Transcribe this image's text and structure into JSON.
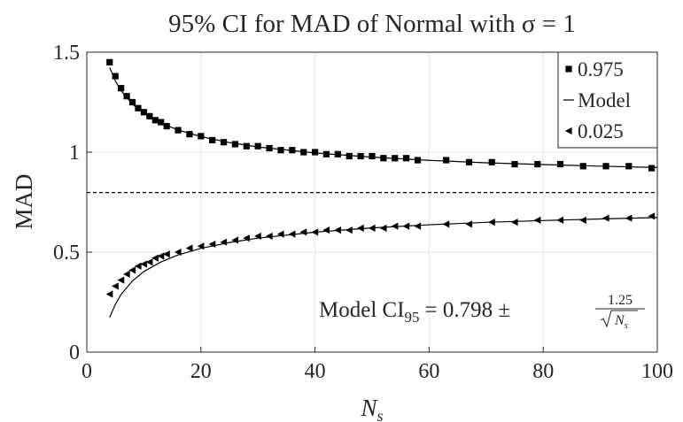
{
  "chart_data": {
    "type": "scatter",
    "title": "95% CI for MAD of Normal with σ = 1",
    "xlabel": {
      "base": "N",
      "sub": "s"
    },
    "ylabel": "MAD",
    "xlim": [
      0,
      100
    ],
    "xticks": [
      0,
      20,
      40,
      60,
      80,
      100
    ],
    "ylim": [
      0,
      1.5
    ],
    "yticks": [
      0,
      0.5,
      1,
      1.5
    ],
    "grid": true,
    "legend": "upper right",
    "x": [
      4,
      5,
      6,
      7,
      8,
      9,
      10,
      11,
      12,
      13,
      14,
      16,
      18,
      20,
      22,
      24,
      26,
      28,
      30,
      32,
      34,
      36,
      38,
      40,
      42,
      44,
      46,
      48,
      50,
      52,
      54,
      56,
      58,
      63,
      67,
      71,
      75,
      79,
      83,
      87,
      91,
      95,
      99
    ],
    "series": [
      {
        "name": "0.975",
        "color": "#000000",
        "marker": "square",
        "values": [
          1.45,
          1.38,
          1.32,
          1.28,
          1.25,
          1.22,
          1.2,
          1.18,
          1.16,
          1.15,
          1.13,
          1.11,
          1.09,
          1.08,
          1.06,
          1.05,
          1.04,
          1.03,
          1.03,
          1.02,
          1.01,
          1.01,
          1.0,
          1.0,
          0.99,
          0.99,
          0.98,
          0.98,
          0.98,
          0.97,
          0.97,
          0.97,
          0.96,
          0.96,
          0.95,
          0.95,
          0.94,
          0.94,
          0.94,
          0.93,
          0.93,
          0.93,
          0.92
        ]
      },
      {
        "name": "Model",
        "color": "#000000",
        "marker": "line",
        "x": [
          4,
          5,
          6,
          8,
          10,
          13,
          16,
          20,
          25,
          30,
          40,
          50,
          60,
          70,
          80,
          90,
          100
        ],
        "values": [
          1.423,
          1.357,
          1.308,
          1.24,
          1.193,
          1.145,
          1.111,
          1.078,
          1.048,
          1.026,
          0.996,
          0.975,
          0.959,
          0.947,
          0.938,
          0.93,
          0.923
        ],
        "lower_values": [
          0.173,
          0.239,
          0.288,
          0.356,
          0.403,
          0.451,
          0.486,
          0.519,
          0.548,
          0.57,
          0.6,
          0.621,
          0.637,
          0.649,
          0.658,
          0.666,
          0.673
        ]
      },
      {
        "name": "0.025",
        "color": "#000000",
        "marker": "triangle-left",
        "values": [
          0.29,
          0.33,
          0.36,
          0.39,
          0.41,
          0.43,
          0.44,
          0.45,
          0.47,
          0.48,
          0.49,
          0.5,
          0.52,
          0.53,
          0.54,
          0.55,
          0.56,
          0.57,
          0.58,
          0.58,
          0.59,
          0.59,
          0.6,
          0.6,
          0.61,
          0.61,
          0.61,
          0.62,
          0.62,
          0.62,
          0.63,
          0.63,
          0.63,
          0.64,
          0.64,
          0.65,
          0.65,
          0.66,
          0.66,
          0.66,
          0.67,
          0.67,
          0.68
        ]
      }
    ],
    "hline": 0.798,
    "annotation": {
      "prefix": "Model CI",
      "sub": "95",
      "middle": "= 0.798 ±",
      "numerator": "1.25",
      "denominator_base": "N",
      "denominator_sub": "s"
    }
  }
}
